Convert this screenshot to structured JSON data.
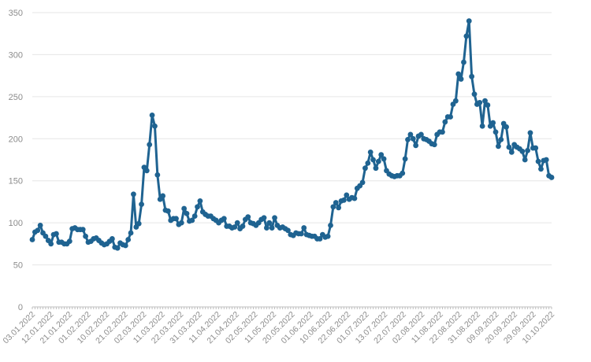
{
  "chart_data": {
    "type": "line",
    "title": "",
    "xlabel": "",
    "ylabel": "",
    "ylim": [
      0,
      350
    ],
    "y_ticks": [
      0,
      50,
      100,
      150,
      200,
      250,
      300,
      350
    ],
    "x_tick_labels": [
      "03.01.2022",
      "12.01.2022",
      "21.01.2022",
      "01.02.2022",
      "10.02.2022",
      "21.02.2022",
      "02.03.2022",
      "11.03.2022",
      "22.03.2022",
      "31.03.2022",
      "11.04.2022",
      "21.04.2022",
      "02.05.2022",
      "11.05.2022",
      "20.05.2022",
      "01.06.2022",
      "10.06.2022",
      "22.06.2022",
      "01.07.2022",
      "13.07.2022",
      "22.07.2022",
      "02.08.2022",
      "11.08.2022",
      "22.08.2022",
      "31.08.2022",
      "09.09.2022",
      "20.09.2022",
      "29.09.2022",
      "10.10.2022"
    ],
    "grid": "horizontal",
    "legend": "none",
    "color": "#1f6391",
    "series": [
      {
        "values": [
          80,
          89,
          91,
          97,
          88,
          84,
          79,
          75,
          86,
          87,
          77,
          77,
          75,
          75,
          78,
          93,
          94,
          92,
          92,
          92,
          84,
          77,
          78,
          81,
          82,
          79,
          76,
          74,
          75,
          78,
          81,
          71,
          70,
          76,
          74,
          73,
          80,
          88,
          134,
          95,
          99,
          122,
          166,
          162,
          193,
          228,
          215,
          157,
          128,
          132,
          115,
          114,
          103,
          105,
          105,
          98,
          100,
          117,
          111,
          102,
          103,
          108,
          119,
          126,
          113,
          110,
          108,
          108,
          105,
          103,
          100,
          103,
          105,
          96,
          96,
          94,
          95,
          100,
          93,
          96,
          104,
          107,
          100,
          99,
          97,
          100,
          104,
          106,
          94,
          100,
          94,
          106,
          97,
          94,
          95,
          93,
          91,
          86,
          85,
          88,
          87,
          87,
          94,
          86,
          85,
          84,
          84,
          81,
          81,
          86,
          83,
          84,
          97,
          119,
          124,
          118,
          126,
          127,
          133,
          128,
          130,
          129,
          141,
          144,
          148,
          165,
          171,
          184,
          175,
          165,
          173,
          181,
          176,
          162,
          158,
          156,
          155,
          156,
          156,
          159,
          176,
          199,
          205,
          200,
          192,
          203,
          205,
          200,
          199,
          197,
          194,
          193,
          205,
          208,
          208,
          220,
          226,
          226,
          241,
          245,
          277,
          271,
          291,
          322,
          340,
          274,
          253,
          241,
          243,
          215,
          245,
          240,
          215,
          219,
          208,
          191,
          199,
          218,
          214,
          190,
          184,
          193,
          190,
          188,
          185,
          175,
          186,
          207,
          189,
          189,
          173,
          164,
          174,
          175,
          156,
          154
        ]
      }
    ]
  }
}
